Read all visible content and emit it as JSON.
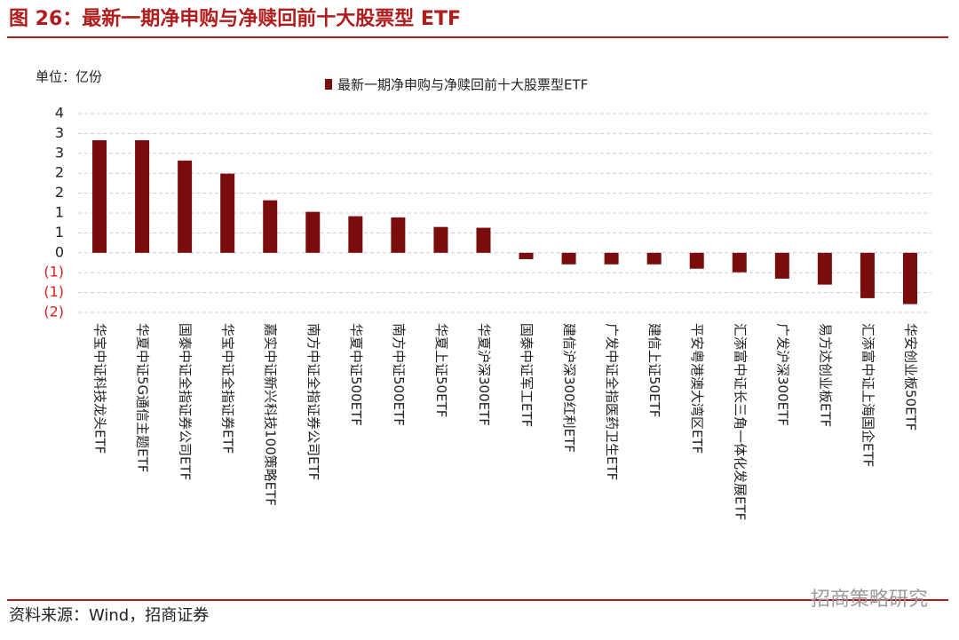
{
  "chart_data": {
    "type": "bar",
    "title": "图 26：最新一期净申购与净赎回前十大股票型 ETF",
    "unit_label": "单位：亿份",
    "source": "资料来源：Wind，招商证券",
    "watermark": "招商策略研究",
    "categories": [
      "华宝中证科技龙头ETF",
      "华夏中证5G通信主题ETF",
      "国泰中证全指证券公司ETF",
      "华宝中证全指证券ETF",
      "嘉实中证新兴科技100策略ETF",
      "南方中证全指证券公司ETF",
      "华夏中证500ETF",
      "南方中证500ETF",
      "华夏上证50ETF",
      "华夏沪深300ETF",
      "国泰中证军工ETF",
      "建信沪深300红利ETF",
      "广发中证全指医药卫生ETF",
      "建信上证50ETF",
      "平安粤港澳大湾区ETF",
      "汇添富中证长三角一体化发展ETF",
      "广发沪深300ETF",
      "易方达创业板ETF",
      "汇添富中证上海国企ETF",
      "华安创业板50ETF"
    ],
    "series": [
      {
        "name": "最新一期净申购与净赎回前十大股票型ETF",
        "color": "#7b0c0c",
        "values": [
          2.83,
          2.83,
          2.32,
          1.99,
          1.32,
          1.03,
          0.92,
          0.89,
          0.65,
          0.63,
          -0.16,
          -0.29,
          -0.29,
          -0.29,
          -0.4,
          -0.49,
          -0.65,
          -0.8,
          -1.14,
          -1.29
        ]
      }
    ],
    "ylim": [
      -1.5,
      3.5
    ],
    "yticks": [
      {
        "value": 3.5,
        "label": "4"
      },
      3,
      {
        "value": 2.5,
        "label": "3"
      },
      2,
      {
        "value": 1.5,
        "label": "2"
      },
      1,
      {
        "value": 0.5,
        "label": "1"
      },
      0,
      {
        "value": -0.5,
        "label": "(1)"
      },
      {
        "value": -1,
        "label": "(1)"
      },
      {
        "value": -1.5,
        "label": "(2)"
      }
    ],
    "grid": true,
    "negative_tick_color": "#e02020",
    "title_color": "#b01c1c"
  }
}
